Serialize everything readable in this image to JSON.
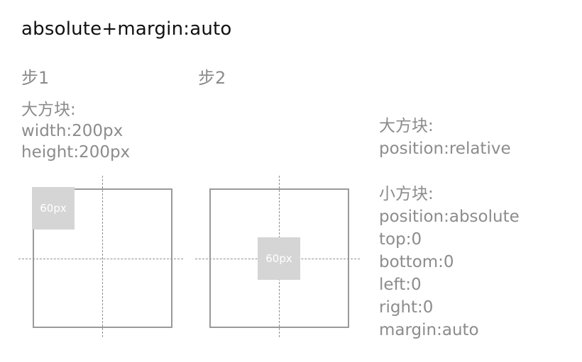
{
  "title": "absolute+margin:auto",
  "steps": [
    "步1",
    "步2"
  ],
  "left_spec": {
    "heading": "大方块:",
    "width": "width:200px",
    "height": "height:200px"
  },
  "right_spec": {
    "big_block": {
      "heading": "大方块:",
      "lines": [
        "position:relative"
      ]
    },
    "small_block": {
      "heading": "小方块:",
      "lines": [
        "position:absolute",
        "top:0",
        "bottom:0",
        "left:0",
        "right:0",
        "margin:auto"
      ]
    }
  },
  "diagrams": [
    {
      "small_label": "60px",
      "state": "before"
    },
    {
      "small_label": "60px",
      "state": "after"
    }
  ],
  "colors": {
    "text_dark": "#111111",
    "text_gray": "#8c8c8c",
    "box_border": "#9a9a9a",
    "small_box_fill": "#d5d5d5"
  }
}
